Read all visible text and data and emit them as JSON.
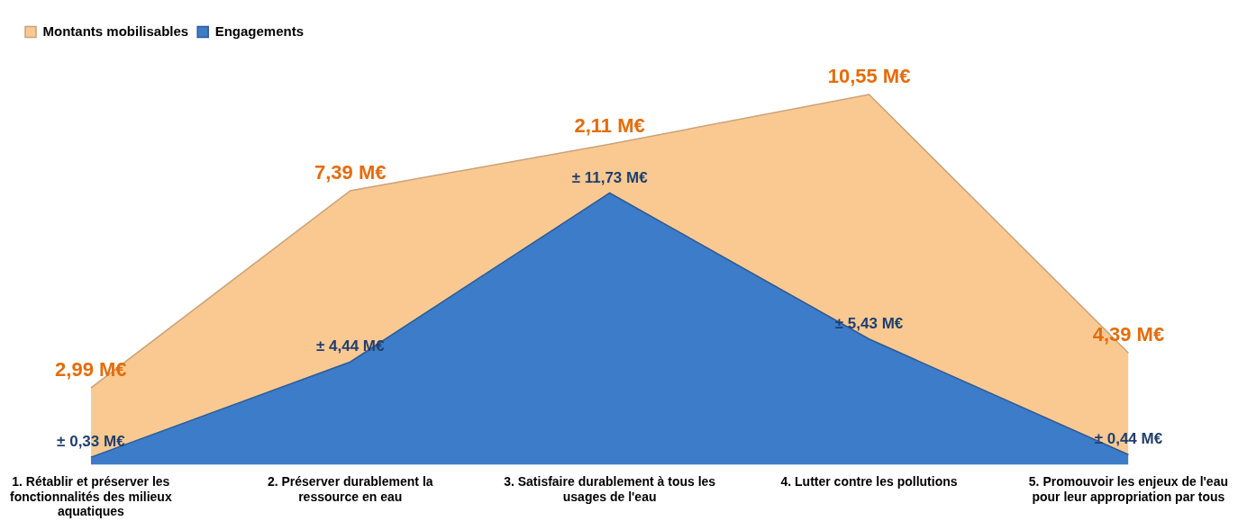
{
  "chart_data": {
    "type": "area",
    "stacked": true,
    "legend": "top left",
    "tick_labels": "x",
    "categories": [
      "1. Rétablir et préserver les fonctionnalités des milieux aquatiques",
      "2. Préserver durablement la ressource en eau",
      "3. Satisfaire durablement à tous les usages de l'eau",
      "4. Lutter contre les pollutions",
      "5. Promouvoir les enjeux de l'eau pour leur appropriation par tous"
    ],
    "series": [
      {
        "name": "Engagements",
        "color": "#3d7cc9",
        "values": [
          0.33,
          4.44,
          11.73,
          5.43,
          0.44
        ],
        "value_labels": [
          "± 0,33 M€",
          "± 4,44 M€",
          "± 11,73 M€",
          "± 5,43 M€",
          "± 0,44 M€"
        ]
      },
      {
        "name": "Montants mobilisables",
        "color": "#fac992",
        "values": [
          2.99,
          7.39,
          2.11,
          10.55,
          4.39
        ],
        "value_labels": [
          "2,99 M€",
          "7,39 M€",
          "2,11 M€",
          "10,55 M€",
          "4,39 M€"
        ]
      }
    ]
  }
}
